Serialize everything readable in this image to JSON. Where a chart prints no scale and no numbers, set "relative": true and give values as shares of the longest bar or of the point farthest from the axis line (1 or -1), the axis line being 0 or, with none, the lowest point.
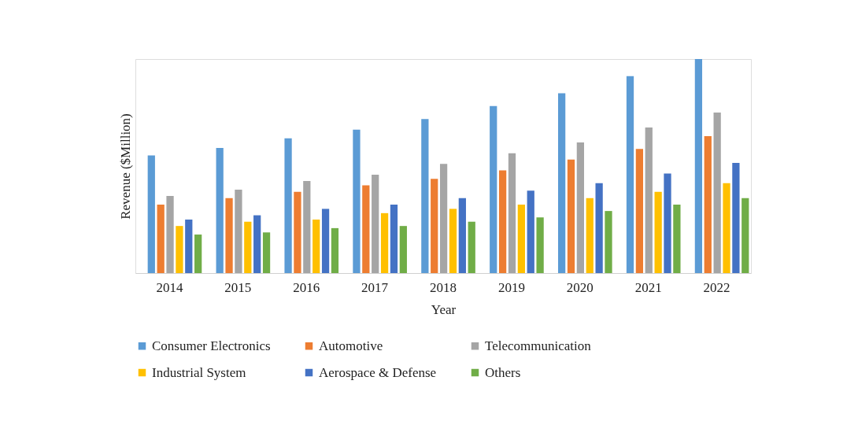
{
  "chart_data": {
    "type": "bar",
    "xlabel": "Year",
    "ylabel": "Revenue ($Million)",
    "relative": true,
    "legend": "bottom",
    "grid": false,
    "categories": [
      "2014",
      "2015",
      "2016",
      "2017",
      "2018",
      "2019",
      "2020",
      "2021",
      "2022"
    ],
    "series": [
      {
        "name": "Consumer Electronics",
        "color": "#5b9bd5",
        "values": [
          0.55,
          0.585,
          0.63,
          0.67,
          0.72,
          0.78,
          0.84,
          0.92,
          1
        ]
      },
      {
        "name": "Automotive",
        "color": "#ed7d31",
        "values": [
          0.32,
          0.35,
          0.38,
          0.41,
          0.44,
          0.48,
          0.53,
          0.58,
          0.64
        ]
      },
      {
        "name": "Telecommunication",
        "color": "#a5a5a5",
        "values": [
          0.36,
          0.39,
          0.43,
          0.46,
          0.51,
          0.56,
          0.61,
          0.68,
          0.75
        ]
      },
      {
        "name": "Industrial System",
        "color": "#ffc000",
        "values": [
          0.22,
          0.24,
          0.25,
          0.28,
          0.3,
          0.32,
          0.35,
          0.38,
          0.42
        ]
      },
      {
        "name": "Aerospace & Defense",
        "color": "#4472c4",
        "values": [
          0.25,
          0.27,
          0.3,
          0.32,
          0.35,
          0.385,
          0.42,
          0.465,
          0.515
        ]
      },
      {
        "name": "Others",
        "color": "#70ad47",
        "values": [
          0.18,
          0.19,
          0.21,
          0.22,
          0.24,
          0.26,
          0.29,
          0.32,
          0.35
        ]
      }
    ]
  }
}
